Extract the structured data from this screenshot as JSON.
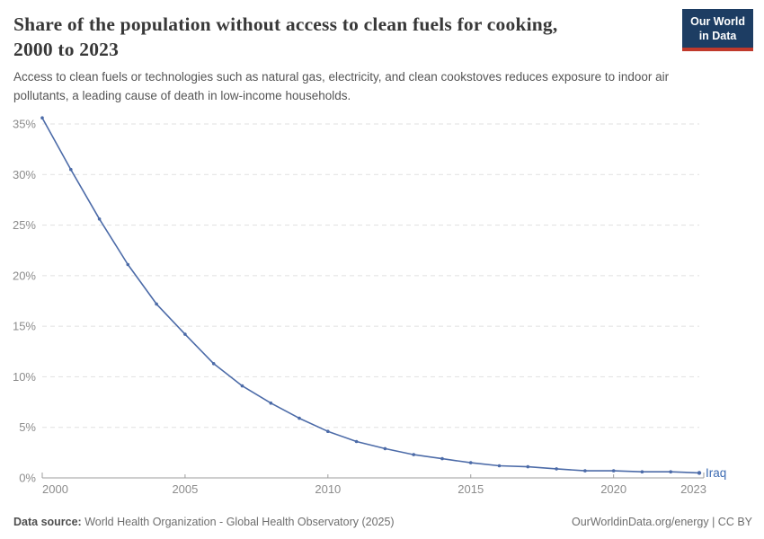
{
  "header": {
    "title": "Share of the population without access to clean fuels for cooking,\n2000 to 2023",
    "subtitle": "Access to clean fuels or technologies such as natural gas, electricity, and clean cookstoves reduces exposure to indoor air\npollutants, a leading cause of death in low-income households.",
    "logo": {
      "line1": "Our World",
      "line2": "in Data"
    }
  },
  "chart_data": {
    "type": "line",
    "title": "Share of the population without access to clean fuels for cooking, 2000 to 2023",
    "xlabel": "",
    "ylabel": "",
    "xlim": [
      2000,
      2023
    ],
    "ylim": [
      0,
      35
    ],
    "x_ticks": [
      2000,
      2005,
      2010,
      2015,
      2020,
      2023
    ],
    "y_ticks": [
      0,
      5,
      10,
      15,
      20,
      25,
      30,
      35
    ],
    "y_unit": "%",
    "grid": "horizontal-dashed",
    "legend_position": "end-of-line-label",
    "series": [
      {
        "name": "Iraq",
        "color": "#4c6ba8",
        "x": [
          2000,
          2001,
          2002,
          2003,
          2004,
          2005,
          2006,
          2007,
          2008,
          2009,
          2010,
          2011,
          2012,
          2013,
          2014,
          2015,
          2016,
          2017,
          2018,
          2019,
          2020,
          2021,
          2022,
          2023
        ],
        "values": [
          35.6,
          30.5,
          25.6,
          21.1,
          17.2,
          14.2,
          11.3,
          9.1,
          7.4,
          5.9,
          4.6,
          3.6,
          2.9,
          2.3,
          1.9,
          1.5,
          1.2,
          1.1,
          0.9,
          0.7,
          0.7,
          0.6,
          0.6,
          0.5
        ]
      }
    ],
    "colors": {
      "grid": "#e1e1e1",
      "axis": "#9e9e9e",
      "tick_label": "#8c8c8c",
      "entity_label": "#3d6bb3"
    }
  },
  "footer": {
    "source_label": "Data source:",
    "source_text": "World Health Organization - Global Health Observatory (2025)",
    "rights": "OurWorldinData.org/energy | CC BY"
  }
}
